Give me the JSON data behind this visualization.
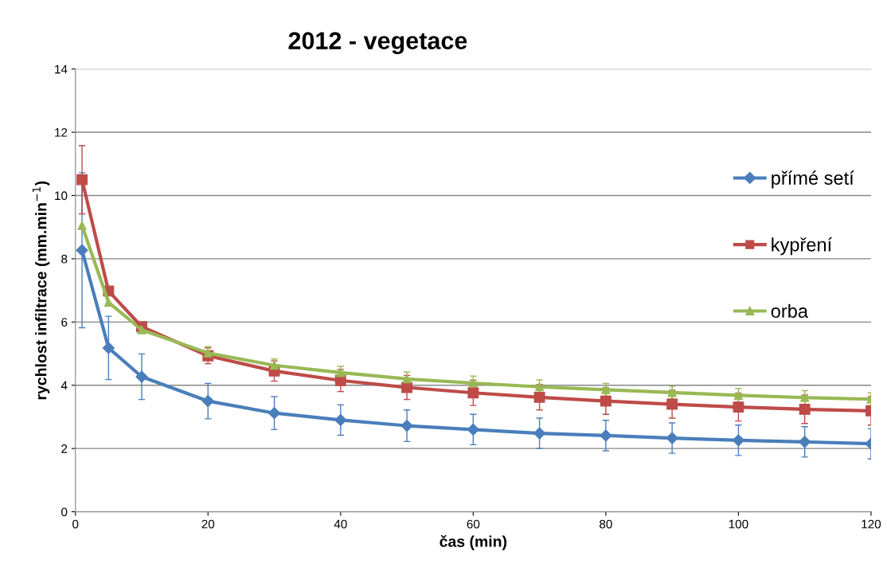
{
  "chart_data": {
    "type": "line",
    "title": "2012 - vegetace",
    "xlabel": "čas (min)",
    "ylabel": "rychlost infiltrace (mm.min$^{−1}$)",
    "x": [
      1,
      5,
      10,
      20,
      30,
      40,
      50,
      60,
      70,
      80,
      90,
      100,
      110,
      120
    ],
    "xlim": [
      0,
      120
    ],
    "xticks": [
      0,
      20,
      40,
      60,
      80,
      100,
      120
    ],
    "ylim": [
      0,
      14
    ],
    "yticks": [
      0,
      2,
      4,
      6,
      8,
      10,
      12,
      14
    ],
    "grid": "y",
    "legend": "right",
    "line_style": "solid",
    "series": [
      {
        "name": "přímé setí",
        "color": "#4a7ebb",
        "marker": "diamond",
        "values": [
          8.27,
          5.18,
          4.27,
          3.5,
          3.12,
          2.9,
          2.72,
          2.6,
          2.48,
          2.41,
          2.33,
          2.26,
          2.21,
          2.15
        ],
        "errors": [
          2.45,
          1.0,
          0.72,
          0.56,
          0.52,
          0.48,
          0.5,
          0.48,
          0.48,
          0.48,
          0.48,
          0.48,
          0.48,
          0.48
        ]
      },
      {
        "name": "kypření",
        "color": "#be4b48",
        "marker": "square",
        "values": [
          10.5,
          6.98,
          5.85,
          4.93,
          4.45,
          4.15,
          3.93,
          3.76,
          3.62,
          3.5,
          3.4,
          3.31,
          3.24,
          3.19
        ],
        "errors": [
          1.08,
          null,
          null,
          0.25,
          0.32,
          0.35,
          0.38,
          0.4,
          0.4,
          0.42,
          0.44,
          0.44,
          0.45,
          0.45
        ]
      },
      {
        "name": "orba",
        "color": "#98b954",
        "marker": "triangle",
        "values": [
          9.05,
          6.62,
          5.75,
          5.02,
          4.63,
          4.4,
          4.2,
          4.07,
          3.95,
          3.86,
          3.77,
          3.68,
          3.61,
          3.56
        ],
        "errors": [
          null,
          null,
          null,
          0.2,
          0.2,
          0.2,
          0.22,
          0.22,
          0.22,
          0.2,
          0.2,
          0.22,
          0.22,
          0.2
        ]
      }
    ]
  }
}
